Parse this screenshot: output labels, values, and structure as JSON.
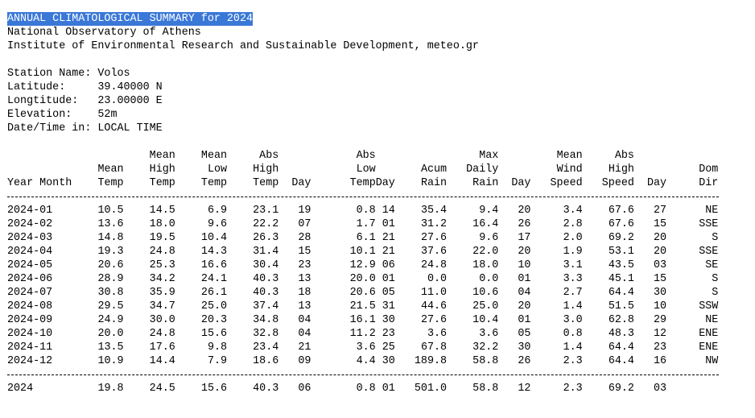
{
  "header": {
    "title": "ANNUAL CLIMATOLOGICAL SUMMARY for 2024",
    "lines": [
      "National Observatory of Athens",
      "Institute of Environmental Research and Sustainable Development, meteo.gr"
    ]
  },
  "station": [
    {
      "label": "Station Name:",
      "value": "Volos"
    },
    {
      "label": "Latitude:",
      "value": "39.40000 N"
    },
    {
      "label": "Longtitude:",
      "value": "23.00000 E"
    },
    {
      "label": "Elevation:",
      "value": "52m"
    },
    {
      "label": "Date/Time in:",
      "value": "LOCAL TIME"
    }
  ],
  "table": {
    "columns": [
      [
        "Year Month"
      ],
      [
        "Mean",
        "Temp"
      ],
      [
        "Mean",
        "High",
        "Temp"
      ],
      [
        "Mean",
        "Low",
        "Temp"
      ],
      [
        "Abs",
        "High",
        "Temp"
      ],
      [
        "Day"
      ],
      [
        "Abs",
        "Low",
        "Temp"
      ],
      [
        "Day"
      ],
      [
        "Acum",
        "Rain"
      ],
      [
        "Max",
        "Daily",
        "Rain"
      ],
      [
        "Day"
      ],
      [
        "Mean",
        "Wind",
        "Speed"
      ],
      [
        "Abs",
        "High",
        "Speed"
      ],
      [
        "Day"
      ],
      [
        "Dom",
        "Dir"
      ]
    ],
    "rows": [
      [
        "2024-01",
        "10.5",
        "14.5",
        "6.9",
        "23.1",
        "19",
        "0.8",
        "14",
        "35.4",
        "9.4",
        "20",
        "3.4",
        "67.6",
        "27",
        "NE"
      ],
      [
        "2024-02",
        "13.6",
        "18.0",
        "9.6",
        "22.2",
        "07",
        "1.7",
        "01",
        "31.2",
        "16.4",
        "26",
        "2.8",
        "67.6",
        "15",
        "SSE"
      ],
      [
        "2024-03",
        "14.8",
        "19.5",
        "10.4",
        "26.3",
        "28",
        "6.1",
        "21",
        "27.6",
        "9.6",
        "17",
        "2.0",
        "69.2",
        "20",
        "S"
      ],
      [
        "2024-04",
        "19.3",
        "24.8",
        "14.3",
        "31.4",
        "15",
        "10.1",
        "21",
        "37.6",
        "22.0",
        "20",
        "1.9",
        "53.1",
        "20",
        "SSE"
      ],
      [
        "2024-05",
        "20.6",
        "25.3",
        "16.6",
        "30.4",
        "23",
        "12.9",
        "06",
        "24.8",
        "18.0",
        "10",
        "3.1",
        "43.5",
        "03",
        "SE"
      ],
      [
        "2024-06",
        "28.9",
        "34.2",
        "24.1",
        "40.3",
        "13",
        "20.0",
        "01",
        "0.0",
        "0.0",
        "01",
        "3.3",
        "45.1",
        "15",
        "S"
      ],
      [
        "2024-07",
        "30.8",
        "35.9",
        "26.1",
        "40.3",
        "18",
        "20.6",
        "05",
        "11.0",
        "10.6",
        "04",
        "2.7",
        "64.4",
        "30",
        "S"
      ],
      [
        "2024-08",
        "29.5",
        "34.7",
        "25.0",
        "37.4",
        "13",
        "21.5",
        "31",
        "44.6",
        "25.0",
        "20",
        "1.4",
        "51.5",
        "10",
        "SSW"
      ],
      [
        "2024-09",
        "24.9",
        "30.0",
        "20.3",
        "34.8",
        "04",
        "16.1",
        "30",
        "27.6",
        "10.4",
        "01",
        "3.0",
        "62.8",
        "29",
        "NE"
      ],
      [
        "2024-10",
        "20.0",
        "24.8",
        "15.6",
        "32.8",
        "04",
        "11.2",
        "23",
        "3.6",
        "3.6",
        "05",
        "0.8",
        "48.3",
        "12",
        "ENE"
      ],
      [
        "2024-11",
        "13.5",
        "17.6",
        "9.8",
        "23.4",
        "21",
        "3.6",
        "25",
        "67.8",
        "32.2",
        "30",
        "1.4",
        "64.4",
        "23",
        "ENE"
      ],
      [
        "2024-12",
        "10.9",
        "14.4",
        "7.9",
        "18.6",
        "09",
        "4.4",
        "30",
        "189.8",
        "58.8",
        "26",
        "2.3",
        "64.4",
        "16",
        "NW"
      ]
    ],
    "total": [
      "2024",
      "19.8",
      "24.5",
      "15.6",
      "40.3",
      "06",
      "0.8",
      "01",
      "501.0",
      "58.8",
      "12",
      "2.3",
      "69.2",
      "03"
    ]
  }
}
